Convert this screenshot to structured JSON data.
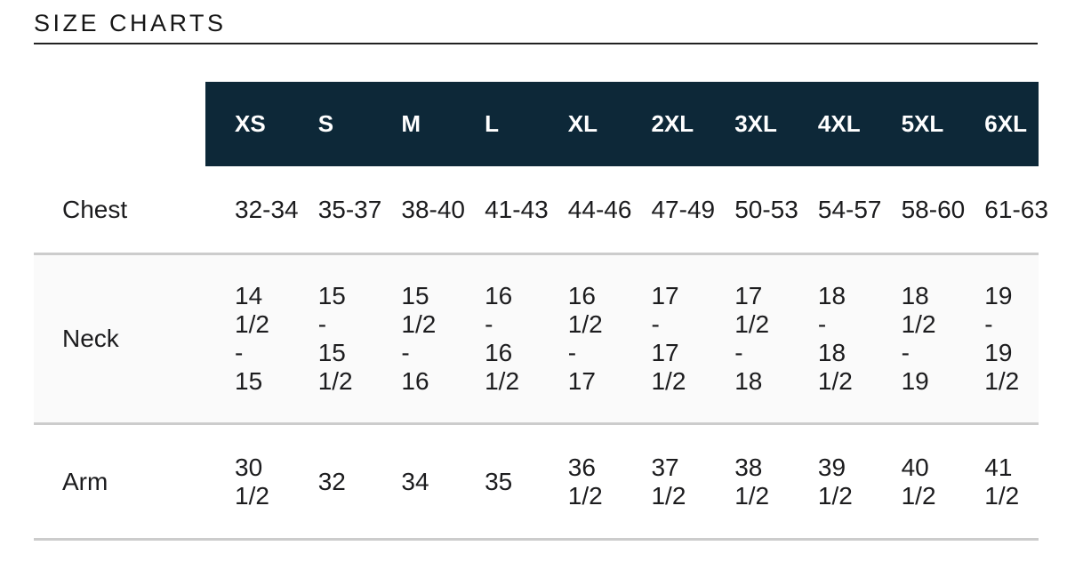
{
  "page": {
    "title": "SIZE CHARTS"
  },
  "colors": {
    "header_bg": "#0d2838",
    "header_text": "#ffffff",
    "shaded_row_bg": "#fafafa",
    "divider": "#cccccc",
    "text": "#1c1c1e"
  },
  "table": {
    "sizes": [
      "XS",
      "S",
      "M",
      "L",
      "XL",
      "2XL",
      "3XL",
      "4XL",
      "5XL",
      "6XL"
    ],
    "rows": [
      {
        "id": "chest",
        "label": "Chest",
        "shaded": false,
        "clipped": true,
        "values": [
          "32-34",
          "35-37",
          "38-40",
          "41-43",
          "44-46",
          "47-49",
          "50-53",
          "54-57",
          "58-60",
          "61-63"
        ],
        "display_lines": [
          [
            "32-34"
          ],
          [
            "35-37"
          ],
          [
            "38-40"
          ],
          [
            "41-43"
          ],
          [
            "44-46"
          ],
          [
            "47-49"
          ],
          [
            "50-53"
          ],
          [
            "54-57"
          ],
          [
            "58-60"
          ],
          [
            "61-63"
          ]
        ]
      },
      {
        "id": "neck",
        "label": "Neck",
        "shaded": true,
        "clipped": false,
        "values": [
          "14 1/2 - 15",
          "15 - 15 1/2",
          "15 1/2 - 16",
          "16 - 16 1/2",
          "16 1/2 - 17",
          "17 - 17 1/2",
          "17 1/2 - 18",
          "18 - 18 1/2",
          "18 1/2 - 19",
          "19 - 19 1/2"
        ],
        "display_lines": [
          [
            "14",
            "1/2",
            "-",
            "15"
          ],
          [
            "15",
            "-",
            "15",
            "1/2"
          ],
          [
            "15",
            "1/2",
            "-",
            "16"
          ],
          [
            "16",
            "-",
            "16",
            "1/2"
          ],
          [
            "16",
            "1/2",
            "-",
            "17"
          ],
          [
            "17",
            "-",
            "17",
            "1/2"
          ],
          [
            "17",
            "1/2",
            "-",
            "18"
          ],
          [
            "18",
            "-",
            "18",
            "1/2"
          ],
          [
            "18",
            "1/2",
            "-",
            "19"
          ],
          [
            "19",
            "-",
            "19",
            "1/2"
          ]
        ]
      },
      {
        "id": "arm",
        "label": "Arm",
        "shaded": false,
        "clipped": false,
        "values": [
          "30 1/2",
          "32",
          "34",
          "35",
          "36 1/2",
          "37 1/2",
          "38 1/2",
          "39 1/2",
          "40 1/2",
          "41 1/2"
        ],
        "display_lines": [
          [
            "30",
            "1/2"
          ],
          [
            "32"
          ],
          [
            "34"
          ],
          [
            "35"
          ],
          [
            "36",
            "1/2"
          ],
          [
            "37",
            "1/2"
          ],
          [
            "38",
            "1/2"
          ],
          [
            "39",
            "1/2"
          ],
          [
            "40",
            "1/2"
          ],
          [
            "41",
            "1/2"
          ]
        ]
      }
    ]
  }
}
